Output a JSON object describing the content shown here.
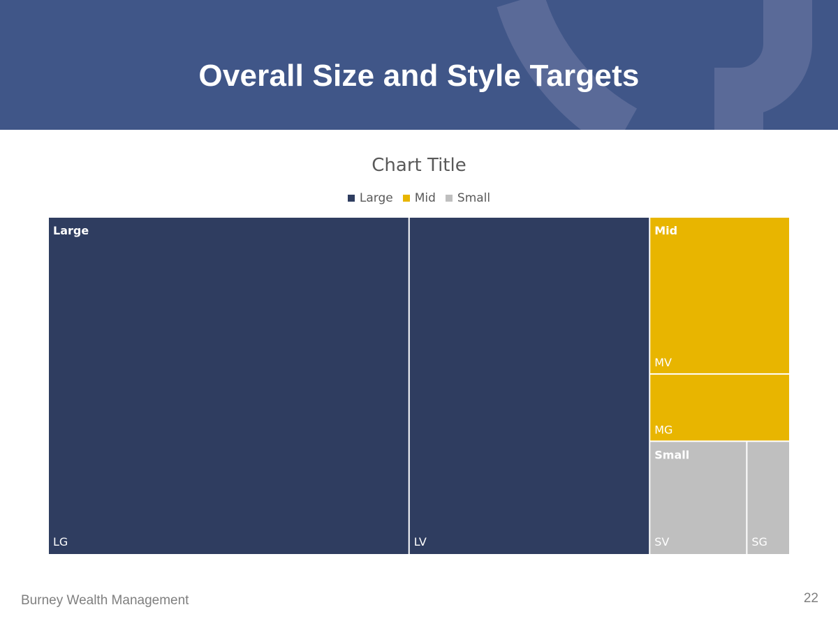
{
  "slide": {
    "title": "Overall Size and Style Targets",
    "footer": "Burney Wealth Management",
    "page_number": "22"
  },
  "theme": {
    "header_bg": "#405688",
    "header_arc": "#5a6a98"
  },
  "chart_data": {
    "type": "treemap",
    "title": "Chart Title",
    "legend_position": "top",
    "groups": [
      {
        "name": "Large",
        "color": "#2f3d60",
        "items": [
          {
            "name": "LG",
            "value": 39
          },
          {
            "name": "LV",
            "value": 26
          }
        ]
      },
      {
        "name": "Mid",
        "color": "#e8b500",
        "items": [
          {
            "name": "MV",
            "value": 7
          },
          {
            "name": "MG",
            "value": 3
          }
        ]
      },
      {
        "name": "Small",
        "color": "#bfbfbf",
        "items": [
          {
            "name": "SV",
            "value": 3.5
          },
          {
            "name": "SG",
            "value": 1.5
          }
        ]
      }
    ]
  }
}
